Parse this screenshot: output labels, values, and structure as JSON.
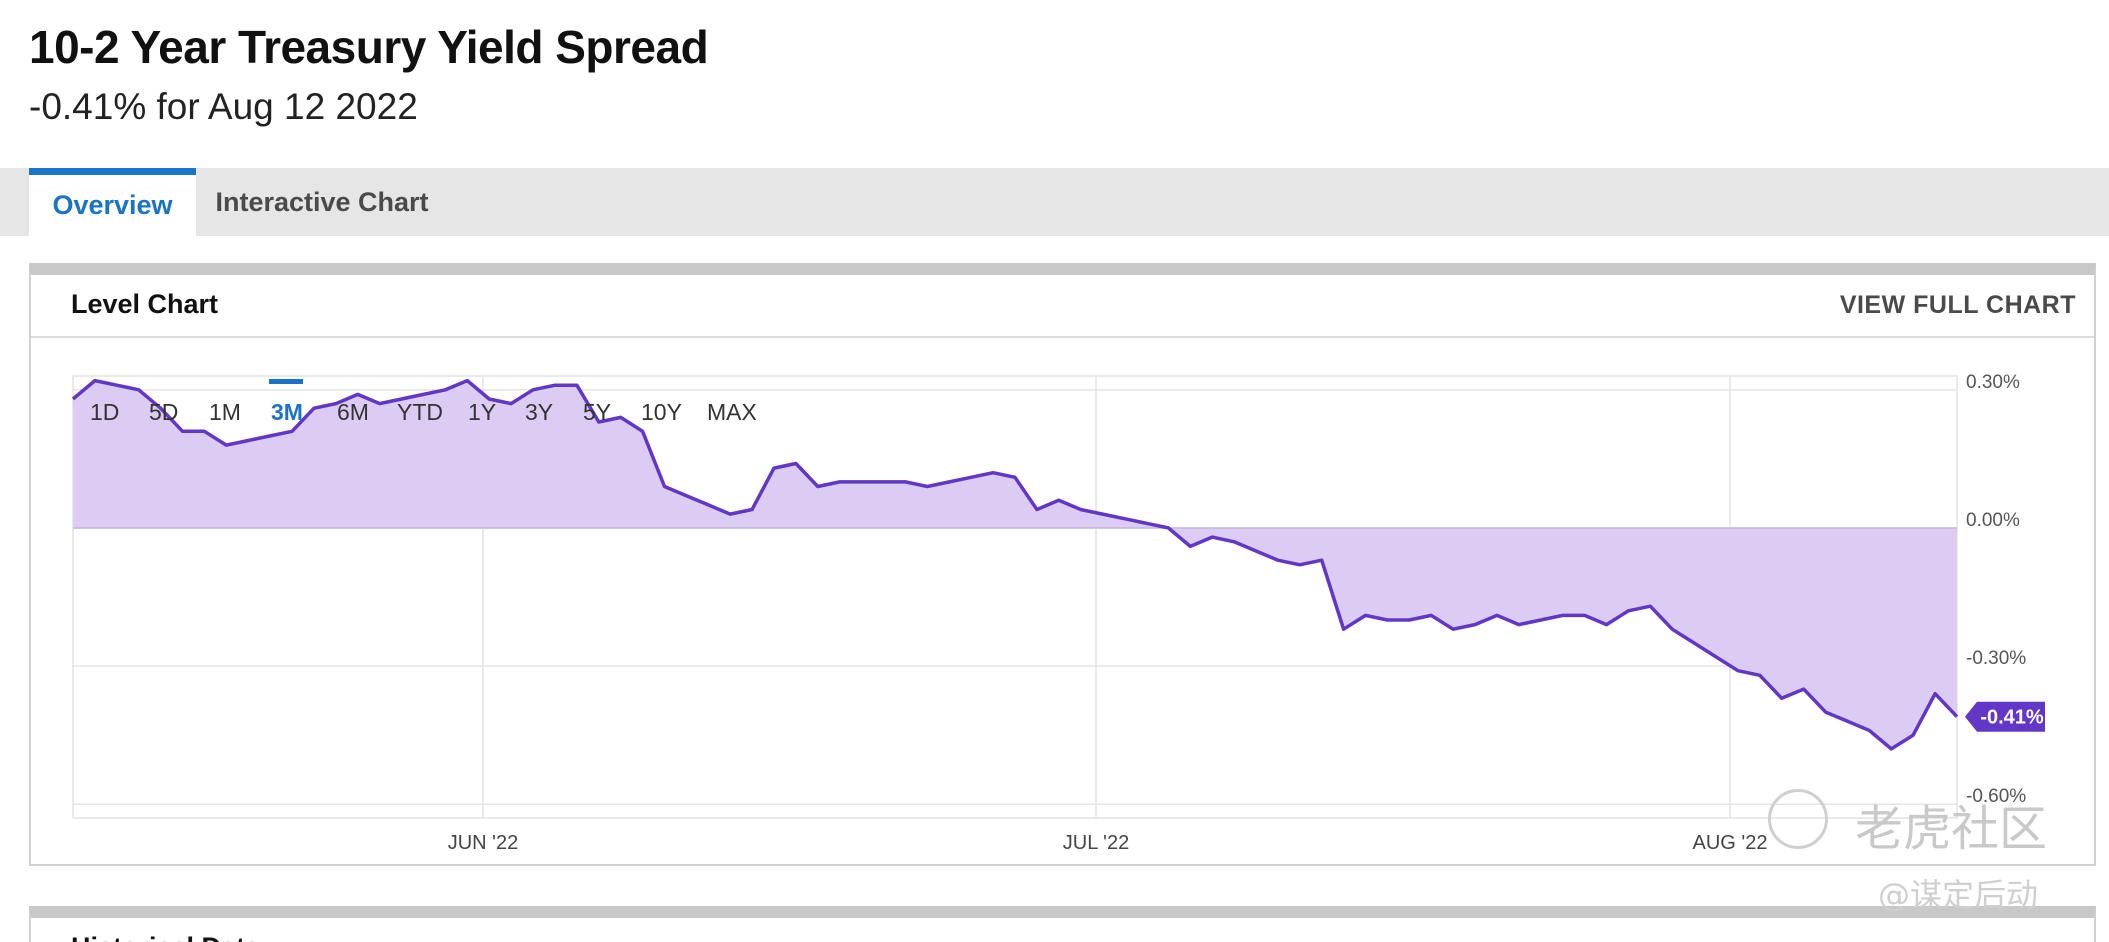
{
  "header": {
    "title": "10-2 Year Treasury Yield Spread",
    "subtitle": "-0.41% for Aug 12 2022"
  },
  "tabs": [
    {
      "label": "Overview",
      "active": true
    },
    {
      "label": "Interactive Chart",
      "active": false
    }
  ],
  "card": {
    "title": "Level Chart",
    "view_full_label": "VIEW FULL CHART"
  },
  "bottom_card": {
    "title": "Historical Data"
  },
  "range_buttons": [
    "1D",
    "5D",
    "1M",
    "3M",
    "6M",
    "YTD",
    "1Y",
    "3Y",
    "5Y",
    "10Y",
    "MAX"
  ],
  "active_range": "3M",
  "colors": {
    "accent": "#1a73c7",
    "line": "#6236c6",
    "fill": "#dccbf2",
    "label_bg": "#6236c6"
  },
  "watermark": {
    "text1": "老虎社区",
    "text2": "@谋定后动"
  },
  "chart_data": {
    "type": "area",
    "x_labels": [
      "JUN '22",
      "JUL '22",
      "AUG '22"
    ],
    "y_ticks": [
      "0.30%",
      "0.00%",
      "-0.30%",
      "-0.60%"
    ],
    "ylim": [
      -0.6,
      0.3
    ],
    "current_value_label": "-0.41%",
    "series": [
      {
        "values": [
          0.28,
          0.32,
          0.31,
          0.3,
          0.26,
          0.21,
          0.21,
          0.18,
          0.19,
          0.2,
          0.21,
          0.26,
          0.27,
          0.29,
          0.27,
          0.28,
          0.29,
          0.3,
          0.32,
          0.28,
          0.27,
          0.3,
          0.31,
          0.31,
          0.23,
          0.24,
          0.21,
          0.09,
          0.07,
          0.05,
          0.03,
          0.04,
          0.13,
          0.14,
          0.09,
          0.1,
          0.1,
          0.1,
          0.1,
          0.09,
          0.1,
          0.11,
          0.12,
          0.11,
          0.04,
          0.06,
          0.04,
          0.03,
          0.02,
          0.01,
          0.0,
          -0.04,
          -0.02,
          -0.03,
          -0.05,
          -0.07,
          -0.08,
          -0.07,
          -0.22,
          -0.19,
          -0.2,
          -0.2,
          -0.19,
          -0.22,
          -0.21,
          -0.19,
          -0.21,
          -0.2,
          -0.19,
          -0.19,
          -0.21,
          -0.18,
          -0.17,
          -0.22,
          -0.25,
          -0.28,
          -0.31,
          -0.32,
          -0.37,
          -0.35,
          -0.4,
          -0.42,
          -0.44,
          -0.48,
          -0.45,
          -0.36,
          -0.41
        ]
      }
    ]
  }
}
